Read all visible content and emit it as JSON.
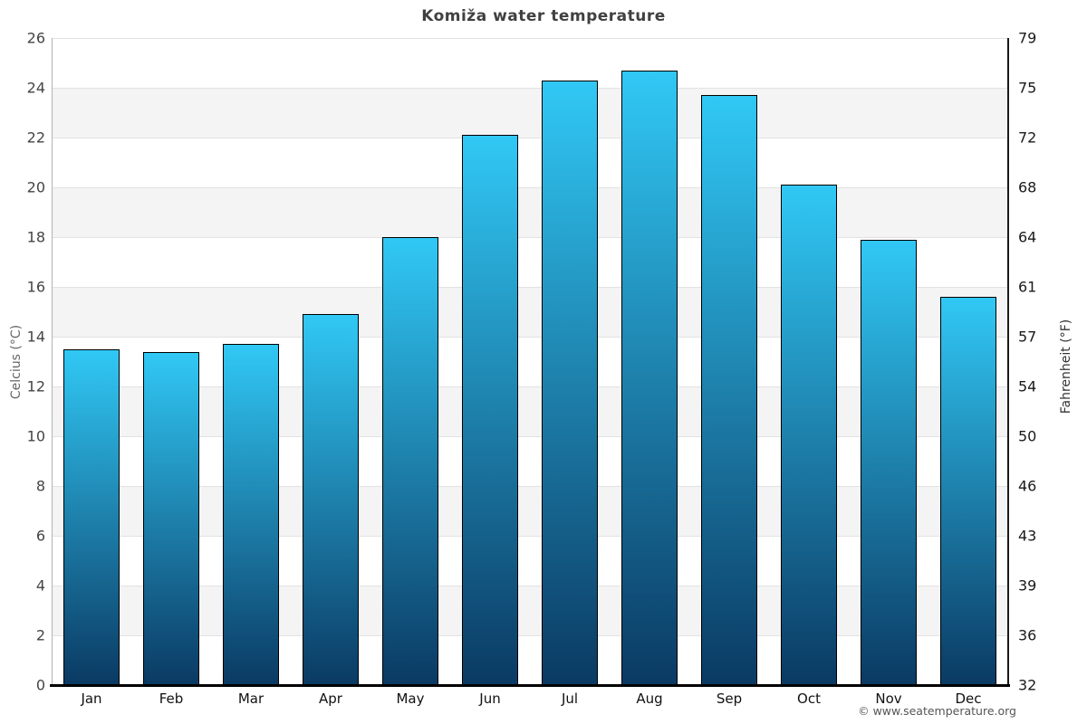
{
  "chart_data": {
    "type": "bar",
    "title": "Komiža water temperature",
    "categories": [
      "Jan",
      "Feb",
      "Mar",
      "Apr",
      "May",
      "Jun",
      "Jul",
      "Aug",
      "Sep",
      "Oct",
      "Nov",
      "Dec"
    ],
    "values": [
      13.5,
      13.4,
      13.7,
      14.9,
      18.0,
      22.1,
      24.3,
      24.7,
      23.7,
      20.1,
      17.9,
      15.6
    ],
    "units": "°C",
    "ylabel_left": "Celcius (°C)",
    "ylabel_right": "Fahrenheit (°F)",
    "ylim": [
      0,
      26
    ],
    "yticks_left": [
      26,
      24,
      22,
      20,
      18,
      16,
      14,
      12,
      10,
      8,
      6,
      4,
      2,
      0
    ],
    "yticks_right": [
      79,
      75,
      72,
      68,
      64,
      61,
      57,
      54,
      50,
      46,
      43,
      39,
      36,
      32
    ],
    "grid": true,
    "legend": "none",
    "colors": {
      "bar_gradient_top": "#31c8f5",
      "bar_gradient_bottom": "#0a3a63",
      "bar_border": "#000000",
      "band_fill": "#f4f4f4",
      "gridline": "#e2e2e2",
      "axis_left_line": "#b3b3b3",
      "axis_right_line": "#1a1a1a",
      "axis_bottom_line": "#000000",
      "title_color": "#404040"
    }
  },
  "footer": {
    "credit": "© www.seatemperature.org"
  }
}
